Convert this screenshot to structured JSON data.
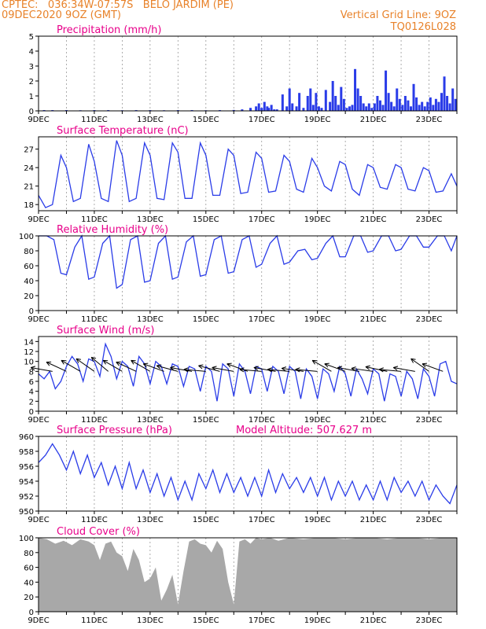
{
  "header": {
    "line1": "CPTEC:   036:34W-07:57S   BELO JARDIM (PE)",
    "line2": "09DEC2020 9OZ (GMT)",
    "right1": "Vertical Grid Line: 9OZ",
    "right2": "TQ0126L028"
  },
  "colors": {
    "header": "#e8822a",
    "title": "#e8008a",
    "line": "#2a3ce8",
    "bar": "#2a3ce8",
    "cloud": "#a8a8a8",
    "arrow": "#000000"
  },
  "x_axis": {
    "ticks": [
      "9DEC",
      "11DEC",
      "13DEC",
      "15DEC",
      "17DEC",
      "19DEC",
      "21DEC",
      "23DEC"
    ],
    "range_days": [
      0,
      15
    ]
  },
  "chart_data": [
    {
      "type": "bar",
      "title": "Precipitation (mm/h)",
      "ylim": [
        0,
        5
      ],
      "yticks": [
        "0",
        "1",
        "2",
        "3",
        "4",
        "5"
      ],
      "x_days": [
        0.2,
        0.5,
        1.0,
        1.5,
        2.0,
        2.5,
        3.0,
        3.5,
        4.0,
        4.5,
        5.0,
        5.5,
        6.0,
        6.5,
        7.0,
        7.3,
        7.6,
        7.8,
        7.9,
        8.0,
        8.1,
        8.2,
        8.25,
        8.35,
        8.45,
        8.55,
        8.75,
        8.9,
        9.0,
        9.1,
        9.25,
        9.35,
        9.5,
        9.65,
        9.75,
        9.85,
        9.95,
        10.05,
        10.15,
        10.3,
        10.45,
        10.55,
        10.65,
        10.75,
        10.85,
        10.95,
        11.05,
        11.15,
        11.25,
        11.35,
        11.45,
        11.55,
        11.65,
        11.75,
        11.85,
        11.95,
        12.05,
        12.15,
        12.25,
        12.35,
        12.45,
        12.55,
        12.65,
        12.75,
        12.85,
        12.95,
        13.05,
        13.15,
        13.25,
        13.35,
        13.45,
        13.55,
        13.65,
        13.75,
        13.85,
        13.95,
        14.05,
        14.15,
        14.25,
        14.35,
        14.45,
        14.55,
        14.65,
        14.75,
        14.85,
        14.95
      ],
      "values": [
        0.05,
        0.05,
        0.05,
        0.04,
        0.05,
        0.05,
        0.04,
        0.05,
        0.05,
        0.04,
        0.05,
        0.05,
        0.04,
        0.05,
        0.06,
        0.1,
        0.2,
        0.3,
        0.5,
        0.2,
        0.6,
        0.3,
        0.2,
        0.4,
        0.1,
        0.1,
        1.1,
        0.3,
        1.5,
        0.5,
        0.3,
        1.2,
        0.2,
        1.0,
        1.5,
        0.4,
        1.2,
        0.3,
        0.2,
        1.4,
        0.6,
        2.0,
        1.0,
        0.4,
        1.6,
        0.8,
        0.2,
        0.3,
        0.4,
        2.8,
        1.5,
        1.0,
        0.5,
        0.3,
        0.5,
        0.2,
        0.5,
        1.0,
        0.7,
        0.4,
        2.7,
        1.2,
        0.6,
        0.3,
        1.5,
        0.8,
        0.4,
        1.0,
        0.7,
        0.3,
        1.8,
        0.9,
        0.4,
        0.6,
        0.3,
        0.6,
        0.9,
        0.4,
        0.8,
        0.6,
        1.2,
        2.3,
        1.0,
        0.5,
        1.5,
        0.8
      ]
    },
    {
      "type": "line",
      "title": "Surface Temperature (nC)",
      "ylim": [
        17,
        29
      ],
      "yticks": [
        "18",
        "21",
        "24",
        "27"
      ],
      "x": [
        0,
        0.25,
        0.5,
        0.8,
        1.0,
        1.25,
        1.5,
        1.8,
        2.0,
        2.25,
        2.5,
        2.8,
        3.0,
        3.25,
        3.5,
        3.8,
        4.0,
        4.25,
        4.5,
        4.8,
        5.0,
        5.25,
        5.5,
        5.8,
        6.0,
        6.25,
        6.5,
        6.8,
        7.0,
        7.25,
        7.5,
        7.8,
        8.0,
        8.25,
        8.5,
        8.8,
        9.0,
        9.25,
        9.5,
        9.8,
        10.0,
        10.25,
        10.5,
        10.8,
        11.0,
        11.25,
        11.5,
        11.8,
        12.0,
        12.25,
        12.5,
        12.8,
        13.0,
        13.25,
        13.5,
        13.8,
        14.0,
        14.25,
        14.5,
        14.8,
        15.0
      ],
      "values": [
        19.5,
        17.5,
        18.0,
        26.0,
        24.0,
        18.5,
        19.0,
        27.8,
        25.0,
        19.0,
        18.5,
        28.4,
        26.0,
        18.5,
        19.0,
        28.0,
        26.0,
        19.0,
        18.8,
        28.0,
        26.5,
        19.0,
        19.0,
        28.0,
        26.0,
        19.5,
        19.5,
        27.0,
        26.0,
        19.8,
        20.0,
        26.5,
        25.5,
        20.0,
        20.2,
        26.0,
        25.0,
        20.5,
        20.0,
        25.5,
        24.0,
        21.0,
        20.2,
        25.0,
        24.5,
        20.5,
        19.5,
        24.5,
        24.0,
        20.8,
        20.5,
        24.5,
        24.0,
        20.5,
        20.2,
        24.0,
        23.5,
        20.0,
        20.2,
        23.0,
        21.0
      ]
    },
    {
      "type": "line",
      "title": "Relative Humidity (%)",
      "ylim": [
        0,
        100
      ],
      "yticks": [
        "0",
        "20",
        "40",
        "60",
        "80",
        "100"
      ],
      "x": [
        0,
        0.3,
        0.55,
        0.8,
        1.0,
        1.3,
        1.55,
        1.8,
        2.0,
        2.3,
        2.55,
        2.8,
        3.0,
        3.3,
        3.55,
        3.8,
        4.0,
        4.3,
        4.55,
        4.8,
        5.0,
        5.3,
        5.55,
        5.8,
        6.0,
        6.3,
        6.55,
        6.8,
        7.0,
        7.3,
        7.55,
        7.8,
        8.0,
        8.3,
        8.55,
        8.8,
        9.0,
        9.3,
        9.55,
        9.8,
        10.0,
        10.3,
        10.55,
        10.8,
        11.0,
        11.3,
        11.55,
        11.8,
        12.0,
        12.3,
        12.55,
        12.8,
        13.0,
        13.3,
        13.55,
        13.8,
        14.0,
        14.3,
        14.55,
        14.8,
        15.0
      ],
      "values": [
        100,
        100,
        95,
        50,
        48,
        85,
        100,
        42,
        45,
        90,
        100,
        30,
        35,
        95,
        100,
        38,
        40,
        90,
        100,
        42,
        45,
        92,
        100,
        46,
        48,
        95,
        100,
        50,
        52,
        95,
        100,
        58,
        62,
        90,
        100,
        62,
        65,
        80,
        82,
        68,
        70,
        90,
        100,
        72,
        72,
        100,
        100,
        78,
        80,
        100,
        100,
        80,
        82,
        100,
        100,
        85,
        85,
        100,
        100,
        80,
        100
      ]
    },
    {
      "type": "line",
      "title": "Surface Wind (m/s)",
      "ylim": [
        0,
        15
      ],
      "yticks": [
        "0",
        "2",
        "4",
        "6",
        "8",
        "10",
        "12",
        "14"
      ],
      "x": [
        0,
        0.2,
        0.4,
        0.6,
        0.8,
        1.0,
        1.2,
        1.4,
        1.6,
        1.8,
        2.0,
        2.2,
        2.4,
        2.6,
        2.8,
        3.0,
        3.2,
        3.4,
        3.6,
        3.8,
        4.0,
        4.2,
        4.4,
        4.6,
        4.8,
        5.0,
        5.2,
        5.4,
        5.6,
        5.8,
        6.0,
        6.2,
        6.4,
        6.6,
        6.8,
        7.0,
        7.2,
        7.4,
        7.6,
        7.8,
        8.0,
        8.2,
        8.4,
        8.6,
        8.8,
        9.0,
        9.2,
        9.4,
        9.6,
        9.8,
        10.0,
        10.2,
        10.4,
        10.6,
        10.8,
        11.0,
        11.2,
        11.4,
        11.6,
        11.8,
        12.0,
        12.2,
        12.4,
        12.6,
        12.8,
        13.0,
        13.2,
        13.4,
        13.6,
        13.8,
        14.0,
        14.2,
        14.4,
        14.6,
        14.8,
        15.0
      ],
      "values": [
        7.5,
        6.5,
        8.0,
        4.5,
        6.0,
        9.0,
        11.0,
        9.5,
        6.0,
        10.5,
        10.0,
        7.0,
        13.5,
        11.0,
        6.5,
        10.0,
        9.0,
        5.0,
        11.0,
        9.5,
        5.5,
        10.0,
        9.0,
        5.5,
        9.5,
        9.0,
        5.0,
        9.0,
        8.5,
        4.0,
        9.0,
        8.0,
        2.0,
        9.5,
        8.5,
        3.0,
        9.5,
        8.0,
        3.5,
        9.0,
        8.5,
        4.0,
        9.0,
        8.0,
        3.5,
        9.0,
        8.0,
        2.5,
        8.5,
        7.0,
        2.5,
        8.5,
        7.5,
        4.0,
        9.0,
        7.5,
        3.0,
        8.5,
        6.5,
        3.5,
        8.5,
        7.5,
        2.0,
        7.5,
        7.0,
        3.0,
        8.0,
        6.5,
        2.5,
        8.5,
        7.0,
        3.0,
        9.5,
        10.0,
        6.0,
        5.5
      ]
    },
    {
      "type": "line",
      "title": "Surface Pressure (hPa)",
      "annotation": "Model Altitude: 507.627 m",
      "ylim": [
        950,
        960
      ],
      "yticks": [
        "950",
        "952",
        "954",
        "956",
        "958",
        "960"
      ],
      "x": [
        0,
        0.25,
        0.5,
        0.75,
        1.0,
        1.25,
        1.5,
        1.75,
        2.0,
        2.25,
        2.5,
        2.75,
        3.0,
        3.25,
        3.5,
        3.75,
        4.0,
        4.25,
        4.5,
        4.75,
        5.0,
        5.25,
        5.5,
        5.75,
        6.0,
        6.25,
        6.5,
        6.75,
        7.0,
        7.25,
        7.5,
        7.75,
        8.0,
        8.25,
        8.5,
        8.75,
        9.0,
        9.25,
        9.5,
        9.75,
        10.0,
        10.25,
        10.5,
        10.75,
        11.0,
        11.25,
        11.5,
        11.75,
        12.0,
        12.25,
        12.5,
        12.75,
        13.0,
        13.25,
        13.5,
        13.75,
        14.0,
        14.25,
        14.5,
        14.75,
        15.0
      ],
      "values": [
        956.5,
        957.5,
        959.0,
        957.5,
        955.5,
        958.0,
        955.0,
        957.5,
        954.5,
        956.5,
        953.5,
        956.0,
        953.0,
        956.5,
        953.0,
        955.5,
        952.5,
        955.0,
        952.0,
        954.5,
        951.5,
        954.0,
        951.5,
        955.0,
        953.0,
        955.5,
        952.5,
        955.0,
        952.5,
        954.5,
        952.0,
        954.5,
        952.0,
        955.5,
        952.5,
        955.0,
        953.0,
        954.5,
        952.5,
        954.5,
        952.0,
        954.5,
        951.5,
        954.0,
        952.0,
        954.0,
        951.5,
        953.5,
        951.5,
        954.0,
        951.5,
        954.5,
        952.5,
        954.0,
        952.0,
        954.0,
        951.5,
        953.5,
        952.0,
        951.0,
        953.5
      ]
    },
    {
      "type": "area",
      "title": "Cloud Cover (%)",
      "ylim": [
        0,
        100
      ],
      "yticks": [
        "0",
        "20",
        "40",
        "60",
        "80",
        "100"
      ],
      "x": [
        0,
        0.3,
        0.6,
        0.9,
        1.2,
        1.5,
        1.8,
        2.0,
        2.2,
        2.4,
        2.6,
        2.8,
        3.0,
        3.2,
        3.4,
        3.6,
        3.8,
        4.0,
        4.2,
        4.4,
        4.6,
        4.8,
        5.0,
        5.2,
        5.4,
        5.6,
        5.8,
        6.0,
        6.2,
        6.4,
        6.6,
        6.8,
        7.0,
        7.2,
        7.4,
        7.6,
        7.8,
        8.0,
        8.3,
        8.6,
        9.0,
        9.5,
        10.0,
        10.5,
        11.0,
        11.5,
        12.0,
        12.5,
        13.0,
        13.5,
        14.0,
        14.5,
        15.0
      ],
      "values": [
        100,
        98,
        92,
        96,
        90,
        98,
        95,
        90,
        70,
        92,
        95,
        80,
        75,
        55,
        85,
        70,
        40,
        45,
        60,
        15,
        30,
        50,
        10,
        55,
        95,
        98,
        92,
        90,
        80,
        96,
        85,
        40,
        10,
        95,
        98,
        92,
        100,
        98,
        100,
        96,
        100,
        98,
        100,
        100,
        98,
        100,
        100,
        98,
        100,
        100,
        98,
        100,
        100
      ]
    }
  ],
  "wind_arrows": [
    {
      "x": 0.5,
      "dir_deg": 10
    },
    {
      "x": 1.0,
      "dir_deg": 25
    },
    {
      "x": 1.5,
      "dir_deg": 30
    },
    {
      "x": 2.0,
      "dir_deg": 35
    },
    {
      "x": 2.5,
      "dir_deg": 40
    },
    {
      "x": 3.0,
      "dir_deg": 30
    },
    {
      "x": 3.5,
      "dir_deg": 25
    },
    {
      "x": 4.0,
      "dir_deg": 30
    },
    {
      "x": 4.5,
      "dir_deg": 20
    },
    {
      "x": 5.0,
      "dir_deg": 15
    },
    {
      "x": 5.5,
      "dir_deg": 10
    },
    {
      "x": 6.0,
      "dir_deg": 5
    },
    {
      "x": 6.5,
      "dir_deg": 15
    },
    {
      "x": 7.0,
      "dir_deg": 10
    },
    {
      "x": 7.5,
      "dir_deg": 20
    },
    {
      "x": 8.0,
      "dir_deg": 5
    },
    {
      "x": 8.5,
      "dir_deg": 10
    },
    {
      "x": 9.0,
      "dir_deg": 5
    },
    {
      "x": 9.5,
      "dir_deg": 8
    },
    {
      "x": 10.0,
      "dir_deg": 5
    },
    {
      "x": 10.5,
      "dir_deg": 30
    },
    {
      "x": 11.0,
      "dir_deg": 20
    },
    {
      "x": 11.5,
      "dir_deg": 10
    },
    {
      "x": 12.0,
      "dir_deg": 8
    },
    {
      "x": 12.5,
      "dir_deg": 12
    },
    {
      "x": 13.0,
      "dir_deg": 5
    },
    {
      "x": 13.5,
      "dir_deg": 10
    },
    {
      "x": 14.0,
      "dir_deg": 35
    },
    {
      "x": 14.5,
      "dir_deg": 20
    }
  ]
}
